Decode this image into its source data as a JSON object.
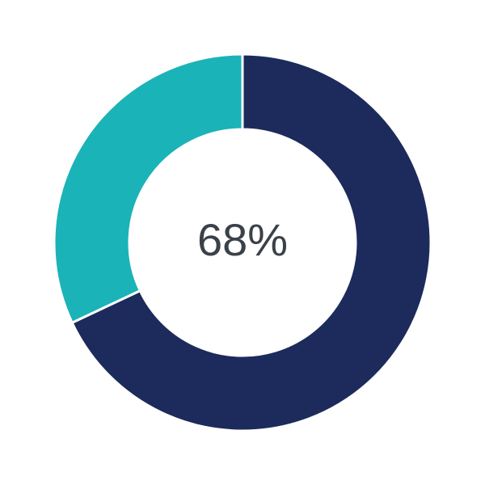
{
  "chart_data": {
    "type": "pie",
    "variant": "donut",
    "center_label": "68%",
    "slices": [
      {
        "value": 68,
        "color": "#1c2b5b"
      },
      {
        "value": 32,
        "color": "#1ab3b8"
      }
    ],
    "start_angle": "top",
    "direction": "clockwise"
  }
}
